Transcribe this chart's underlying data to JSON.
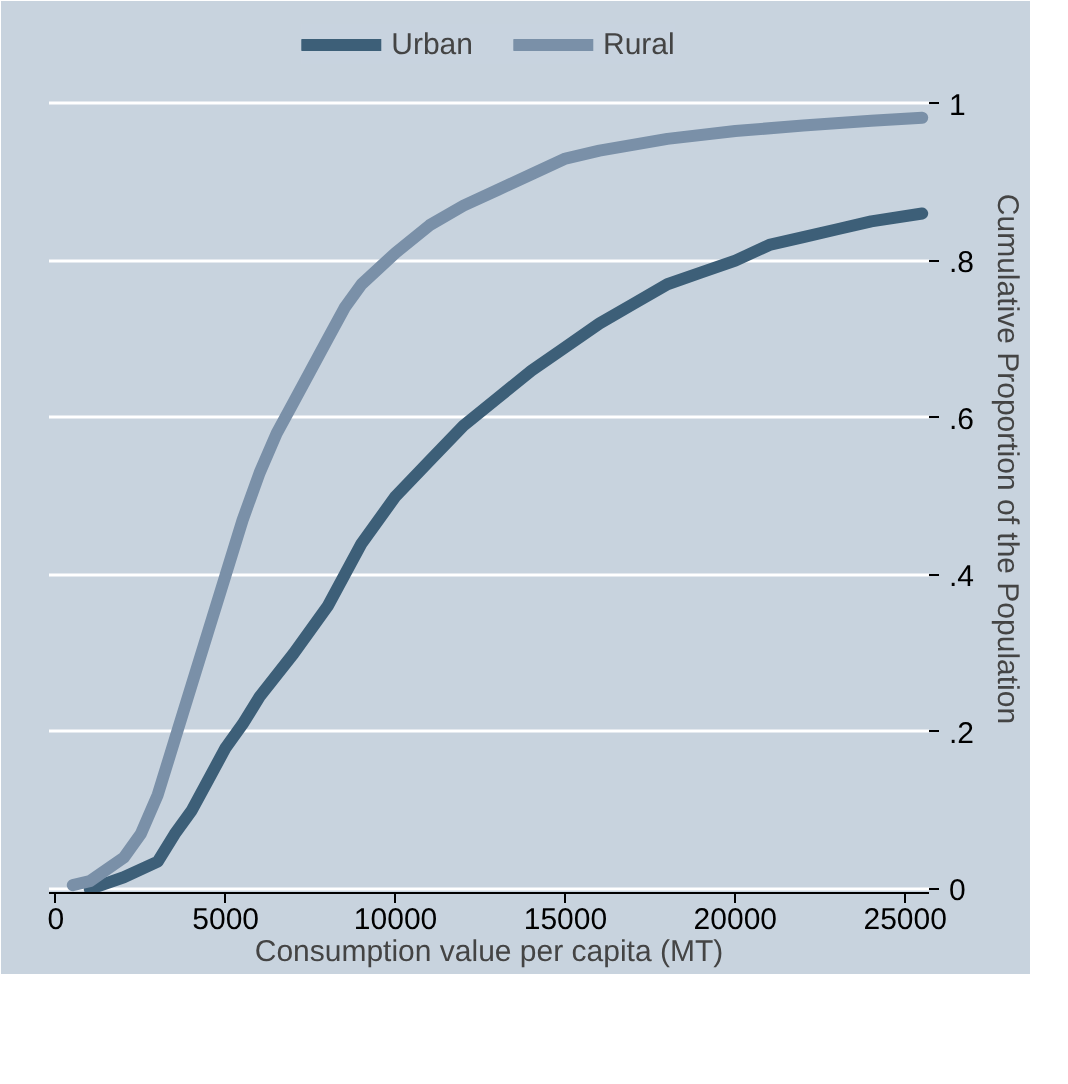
{
  "chart_data": {
    "type": "line",
    "xlabel": "Consumption value per capita (MT)",
    "ylabel": "Cumulative Proportion of the Population",
    "xlim": [
      -200,
      25700
    ],
    "ylim": [
      -0.005,
      1.1
    ],
    "xticks": [
      0,
      5000,
      10000,
      15000,
      20000,
      25000
    ],
    "yticks": [
      0,
      {
        "value": 0.2,
        "label": ".2"
      },
      {
        "value": 0.4,
        "label": ".4"
      },
      {
        "value": 0.6,
        "label": ".6"
      },
      {
        "value": 0.8,
        "label": ".8"
      },
      1
    ],
    "grid": "y",
    "legend": "top",
    "marker": "none",
    "line_style": "solid",
    "series": [
      {
        "name": "Urban",
        "color": "#3d5f78",
        "x": [
          1000,
          2000,
          3000,
          3500,
          4000,
          4500,
          5000,
          5500,
          6000,
          7000,
          8000,
          8500,
          9000,
          10000,
          11000,
          12000,
          13000,
          14000,
          15000,
          16000,
          17000,
          18000,
          19000,
          20000,
          21000,
          22000,
          23000,
          24000,
          25500
        ],
        "values": [
          0.0,
          0.015,
          0.035,
          0.07,
          0.1,
          0.14,
          0.18,
          0.21,
          0.245,
          0.3,
          0.36,
          0.4,
          0.44,
          0.5,
          0.545,
          0.59,
          0.625,
          0.66,
          0.69,
          0.72,
          0.745,
          0.77,
          0.785,
          0.8,
          0.82,
          0.83,
          0.84,
          0.85,
          0.86
        ]
      },
      {
        "name": "Rural",
        "color": "#7a90a8",
        "x": [
          500,
          1000,
          2000,
          2500,
          3000,
          3500,
          4000,
          4500,
          5000,
          5500,
          6000,
          6500,
          7000,
          7500,
          8000,
          8500,
          9000,
          10000,
          11000,
          12000,
          13000,
          14000,
          15000,
          16000,
          18000,
          20000,
          22000,
          24000,
          25500
        ],
        "values": [
          0.005,
          0.01,
          0.04,
          0.07,
          0.12,
          0.19,
          0.26,
          0.33,
          0.4,
          0.47,
          0.53,
          0.58,
          0.62,
          0.66,
          0.7,
          0.74,
          0.77,
          0.81,
          0.845,
          0.87,
          0.89,
          0.91,
          0.93,
          0.94,
          0.955,
          0.965,
          0.972,
          0.978,
          0.982
        ]
      }
    ]
  }
}
